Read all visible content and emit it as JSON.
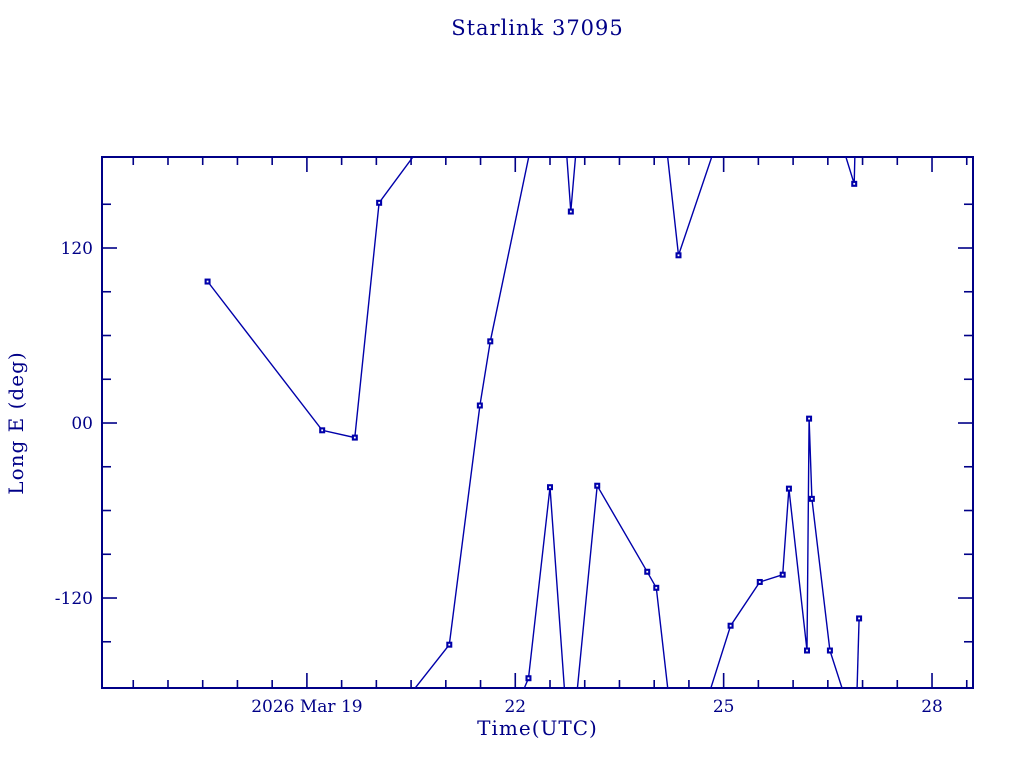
{
  "page": {
    "background": "#ffffff"
  },
  "chart_data": {
    "type": "line",
    "title": "Starlink 37095",
    "xlabel": "Time(UTC)",
    "ylabel": "Long E (deg)",
    "axis_color": "#000087",
    "series_color": "#0000aa",
    "marker_shape": "filled-square",
    "x_axis": {
      "range": [
        16.05,
        28.59
      ],
      "major_ticks": [
        {
          "day": 19,
          "label": "2026 Mar 19"
        },
        {
          "day": 22,
          "label": "22"
        },
        {
          "day": 25,
          "label": "25"
        },
        {
          "day": 28,
          "label": "28"
        }
      ],
      "minor_step": 0.5
    },
    "y_axis": {
      "range": [
        -181.7,
        182.4
      ],
      "major_ticks": [
        {
          "value": 120,
          "label": "120"
        },
        {
          "value": 0,
          "label": "00"
        },
        {
          "value": -120,
          "label": "-120"
        }
      ],
      "minor_step": 30
    },
    "segments": [
      [
        [
          17.57,
          97
        ],
        [
          19.22,
          -5
        ],
        [
          19.69,
          -10
        ],
        [
          20.04,
          151
        ],
        [
          20.55,
          184
        ]
      ],
      [
        [
          20.52,
          -184
        ],
        [
          21.05,
          -152
        ],
        [
          21.49,
          12
        ],
        [
          21.64,
          56
        ],
        [
          22.2,
          184
        ]
      ],
      [
        [
          22.11,
          -184
        ],
        [
          22.19,
          -175
        ],
        [
          22.5,
          -44
        ],
        [
          22.71,
          -184
        ]
      ],
      [
        [
          22.74,
          184
        ],
        [
          22.8,
          145
        ],
        [
          22.87,
          184
        ]
      ],
      [
        [
          22.89,
          -184
        ],
        [
          23.18,
          -43
        ],
        [
          23.9,
          -102
        ],
        [
          24.03,
          -113
        ],
        [
          24.2,
          -184
        ]
      ],
      [
        [
          24.19,
          184
        ],
        [
          24.35,
          115
        ],
        [
          24.84,
          184
        ]
      ],
      [
        [
          24.8,
          -184
        ],
        [
          25.1,
          -139
        ],
        [
          25.52,
          -109
        ],
        [
          25.85,
          -104
        ],
        [
          25.94,
          -45
        ],
        [
          26.2,
          -156
        ],
        [
          26.23,
          3
        ],
        [
          26.27,
          -52
        ],
        [
          26.53,
          -156
        ],
        [
          26.72,
          -184
        ]
      ],
      [
        [
          26.75,
          184
        ],
        [
          26.88,
          164
        ],
        [
          26.89,
          184
        ]
      ],
      [
        [
          26.92,
          -184
        ],
        [
          26.95,
          -134
        ]
      ]
    ],
    "markers": [
      [
        17.57,
        97
      ],
      [
        19.22,
        -5
      ],
      [
        19.69,
        -10
      ],
      [
        20.04,
        151
      ],
      [
        21.05,
        -152
      ],
      [
        21.49,
        12
      ],
      [
        21.64,
        56
      ],
      [
        22.19,
        -175
      ],
      [
        22.5,
        -44
      ],
      [
        22.8,
        145
      ],
      [
        23.18,
        -43
      ],
      [
        23.9,
        -102
      ],
      [
        24.03,
        -113
      ],
      [
        24.35,
        115
      ],
      [
        25.1,
        -139
      ],
      [
        25.52,
        -109
      ],
      [
        25.85,
        -104
      ],
      [
        25.94,
        -45
      ],
      [
        26.2,
        -156
      ],
      [
        26.23,
        3
      ],
      [
        26.27,
        -52
      ],
      [
        26.53,
        -156
      ],
      [
        26.88,
        164
      ],
      [
        26.95,
        -134
      ]
    ]
  }
}
